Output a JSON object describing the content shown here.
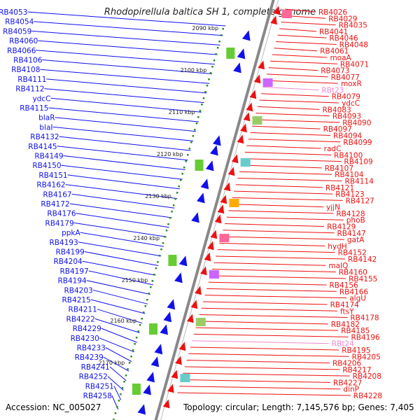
{
  "title": "Rhodopirellula baltica SH 1, complete genome",
  "footer": {
    "accession": "Accession: NC_005027",
    "topology": "Topology: circular; Length: 7,145,576 bp; Genes: 7,405"
  },
  "colors": {
    "left_gene": "#1010ee",
    "right_gene": "#ee1010",
    "trna": "#ee88cc",
    "scale_tick": "#2a8a2a",
    "axis": "#888888"
  },
  "scale_labels": [
    "2090 kbp",
    "2100 kbp",
    "2110 kbp",
    "2120 kbp",
    "2130 kbp",
    "2140 kbp",
    "2150 kbp",
    "2160 kbp",
    "2170 kbp"
  ],
  "left_labels": [
    "RB4053",
    "RB4054",
    "RB4059",
    "RB4060",
    "RB4066",
    "RB4106",
    "RB4108",
    "RB4111",
    "RB4112",
    "ydcC",
    "RB4115",
    "blaR",
    "blaI",
    "RB4132",
    "RB4145",
    "RB4149",
    "RB4150",
    "RB4151",
    "RB4162",
    "RB4167",
    "RB4172",
    "RB4176",
    "RB4179",
    "ppkA",
    "RB4193",
    "RB4199",
    "RB4204",
    "RB4197",
    "RB4194",
    "RB4203",
    "RB4215",
    "RB4211",
    "RB4222",
    "RB4229",
    "RB4230",
    "RB4233",
    "RB4239",
    "RB4241",
    "RB4252",
    "RB4251",
    "RB4258"
  ],
  "right_labels": [
    "RB4026",
    "RB4029",
    "RB4035",
    "RB4041",
    "RB4046",
    "RB4048",
    "RB4061",
    "moaA",
    "RB4071",
    "RB4073",
    "RB4077",
    "moxR",
    "RBt23",
    "RB4079",
    "ydcC",
    "RB4083",
    "RB4093",
    "RB4090",
    "RB4097",
    "RB4094",
    "RB4099",
    "radC",
    "RB4100",
    "RB4109",
    "RB4107",
    "RB4104",
    "RB4114",
    "RB4121",
    "RB4123",
    "RB4127",
    "yjjN",
    "RB4128",
    "phoB",
    "RB4129",
    "RB4147",
    "gatA",
    "hydH",
    "RB4152",
    "RB4142",
    "malQ",
    "RB4160",
    "RB4155",
    "RB4156",
    "RB4166",
    "algU",
    "RB4174",
    "ftsY",
    "RB4178",
    "RB4182",
    "RB4185",
    "RB4196",
    "RBt24",
    "RB4195",
    "RB4205",
    "RB4206",
    "RB4217",
    "RB4208",
    "RB4227",
    "dinP",
    "RB4228"
  ]
}
